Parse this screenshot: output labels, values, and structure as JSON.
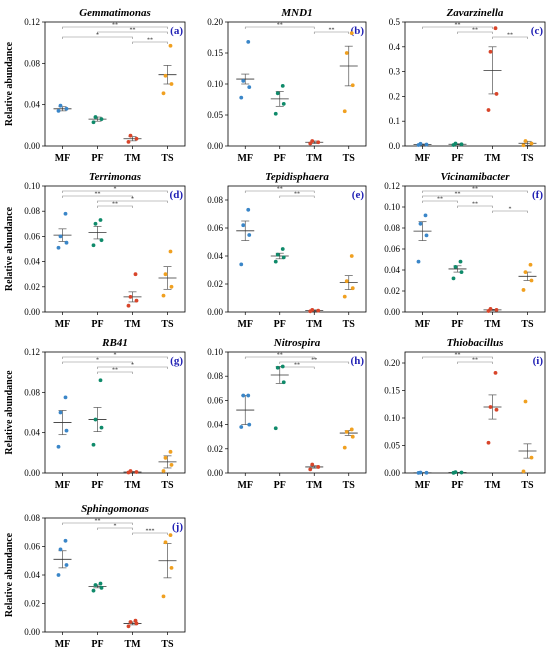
{
  "categories": [
    "MF",
    "PF",
    "TM",
    "TS"
  ],
  "colors": {
    "MF": "#3a86c8",
    "PF": "#0f8a6a",
    "TM": "#d8452a",
    "TS": "#f0a020"
  },
  "y_label": "Relative abundance",
  "chart_data": [
    {
      "type": "scatter",
      "title": "Gemmatimonas",
      "letter": "(a)",
      "ylim": [
        0,
        0.12
      ],
      "yticks": [
        "0.00",
        "0.04",
        "0.08",
        "0.12"
      ],
      "ytick_values": [
        0,
        0.04,
        0.08,
        0.12
      ],
      "series": [
        {
          "category": "MF",
          "points": [
            0.034,
            0.036,
            0.039
          ],
          "mean": 0.036,
          "err": 0.002
        },
        {
          "category": "PF",
          "points": [
            0.023,
            0.026,
            0.028
          ],
          "mean": 0.026,
          "err": 0.002
        },
        {
          "category": "TM",
          "points": [
            0.004,
            0.007,
            0.01
          ],
          "mean": 0.007,
          "err": 0.002
        },
        {
          "category": "TS",
          "points": [
            0.051,
            0.06,
            0.068,
            0.097
          ],
          "mean": 0.069,
          "err": 0.009
        }
      ],
      "significance": [
        {
          "from": "MF",
          "to": "TS",
          "label": "**"
        },
        {
          "from": "PF",
          "to": "TS",
          "label": "**"
        },
        {
          "from": "MF",
          "to": "TM",
          "label": "*"
        },
        {
          "from": "TM",
          "to": "TS",
          "label": "**"
        }
      ]
    },
    {
      "type": "scatter",
      "title": "MND1",
      "letter": "(b)",
      "ylim": [
        0,
        0.2
      ],
      "yticks": [
        "0.00",
        "0.05",
        "0.10",
        "0.15",
        "0.20"
      ],
      "ytick_values": [
        0,
        0.05,
        0.1,
        0.15,
        0.2
      ],
      "series": [
        {
          "category": "MF",
          "points": [
            0.078,
            0.095,
            0.105,
            0.168
          ],
          "mean": 0.108,
          "err": 0.008
        },
        {
          "category": "PF",
          "points": [
            0.052,
            0.068,
            0.085,
            0.097
          ],
          "mean": 0.076,
          "err": 0.012
        },
        {
          "category": "TM",
          "points": [
            0.004,
            0.006,
            0.008
          ],
          "mean": 0.006,
          "err": 0.002
        },
        {
          "category": "TS",
          "points": [
            0.056,
            0.098,
            0.15,
            0.182
          ],
          "mean": 0.129,
          "err": 0.032
        }
      ],
      "significance": [
        {
          "from": "MF",
          "to": "TM",
          "label": "**"
        },
        {
          "from": "TM",
          "to": "TS",
          "label": "**"
        }
      ]
    },
    {
      "type": "scatter",
      "title": "Zavarzinella",
      "letter": "(c)",
      "ylim": [
        0,
        0.5
      ],
      "yticks": [
        "0.0",
        "0.1",
        "0.2",
        "0.3",
        "0.4",
        "0.5"
      ],
      "ytick_values": [
        0,
        0.1,
        0.2,
        0.3,
        0.4,
        0.5
      ],
      "series": [
        {
          "category": "MF",
          "points": [
            0.004,
            0.006,
            0.009
          ],
          "mean": 0.006,
          "err": 0.002
        },
        {
          "category": "PF",
          "points": [
            0.004,
            0.007,
            0.01
          ],
          "mean": 0.007,
          "err": 0.002
        },
        {
          "category": "TM",
          "points": [
            0.145,
            0.21,
            0.38,
            0.475
          ],
          "mean": 0.305,
          "err": 0.095
        },
        {
          "category": "TS",
          "points": [
            0.003,
            0.01,
            0.02
          ],
          "mean": 0.011,
          "err": 0.008
        }
      ],
      "significance": [
        {
          "from": "MF",
          "to": "TM",
          "label": "**"
        },
        {
          "from": "PF",
          "to": "TM",
          "label": "**"
        },
        {
          "from": "TM",
          "to": "TS",
          "label": "**"
        }
      ]
    },
    {
      "type": "scatter",
      "title": "Terrimonas",
      "letter": "(d)",
      "ylim": [
        0,
        0.1
      ],
      "yticks": [
        "0.00",
        "0.02",
        "0.04",
        "0.06",
        "0.08",
        "0.10"
      ],
      "ytick_values": [
        0,
        0.02,
        0.04,
        0.06,
        0.08,
        0.1
      ],
      "series": [
        {
          "category": "MF",
          "points": [
            0.051,
            0.055,
            0.06,
            0.078
          ],
          "mean": 0.061,
          "err": 0.005
        },
        {
          "category": "PF",
          "points": [
            0.053,
            0.057,
            0.07,
            0.073
          ],
          "mean": 0.063,
          "err": 0.005
        },
        {
          "category": "TM",
          "points": [
            0.005,
            0.009,
            0.012,
            0.03
          ],
          "mean": 0.012,
          "err": 0.004
        },
        {
          "category": "TS",
          "points": [
            0.013,
            0.02,
            0.03,
            0.048
          ],
          "mean": 0.027,
          "err": 0.009
        }
      ],
      "significance": [
        {
          "from": "MF",
          "to": "TS",
          "label": "*"
        },
        {
          "from": "MF",
          "to": "TM",
          "label": "**"
        },
        {
          "from": "PF",
          "to": "TS",
          "label": "*"
        },
        {
          "from": "PF",
          "to": "TM",
          "label": "**"
        }
      ]
    },
    {
      "type": "scatter",
      "title": "Tepidisphaera",
      "letter": "(e)",
      "ylim": [
        0,
        0.09
      ],
      "yticks": [
        "0.00",
        "0.02",
        "0.04",
        "0.06",
        "0.08"
      ],
      "ytick_values": [
        0,
        0.02,
        0.04,
        0.06,
        0.08
      ],
      "series": [
        {
          "category": "MF",
          "points": [
            0.034,
            0.055,
            0.062,
            0.073
          ],
          "mean": 0.058,
          "err": 0.007
        },
        {
          "category": "PF",
          "points": [
            0.036,
            0.039,
            0.041,
            0.045
          ],
          "mean": 0.04,
          "err": 0.002
        },
        {
          "category": "TM",
          "points": [
            0.0005,
            0.001,
            0.0015
          ],
          "mean": 0.001,
          "err": 0.0005
        },
        {
          "category": "TS",
          "points": [
            0.011,
            0.017,
            0.022,
            0.04
          ],
          "mean": 0.021,
          "err": 0.005
        }
      ],
      "significance": [
        {
          "from": "MF",
          "to": "TM",
          "label": "**"
        },
        {
          "from": "PF",
          "to": "TM",
          "label": "**"
        }
      ]
    },
    {
      "type": "scatter",
      "title": "Vicinamibacter",
      "letter": "(f)",
      "ylim": [
        0,
        0.12
      ],
      "yticks": [
        "0.00",
        "0.02",
        "0.04",
        "0.06",
        "0.08",
        "0.10",
        "0.12"
      ],
      "ytick_values": [
        0,
        0.02,
        0.04,
        0.06,
        0.08,
        0.1,
        0.12
      ],
      "series": [
        {
          "category": "MF",
          "points": [
            0.048,
            0.073,
            0.084,
            0.092
          ],
          "mean": 0.077,
          "err": 0.009
        },
        {
          "category": "PF",
          "points": [
            0.032,
            0.038,
            0.043,
            0.048
          ],
          "mean": 0.041,
          "err": 0.003
        },
        {
          "category": "TM",
          "points": [
            0.001,
            0.002,
            0.003
          ],
          "mean": 0.002,
          "err": 0.0005
        },
        {
          "category": "TS",
          "points": [
            0.021,
            0.03,
            0.038,
            0.045
          ],
          "mean": 0.034,
          "err": 0.004
        }
      ],
      "significance": [
        {
          "from": "MF",
          "to": "TS",
          "label": "**"
        },
        {
          "from": "MF",
          "to": "TM",
          "label": "**"
        },
        {
          "from": "MF",
          "to": "PF",
          "label": "**"
        },
        {
          "from": "PF",
          "to": "TM",
          "label": "**"
        },
        {
          "from": "TM",
          "to": "TS",
          "label": "*"
        }
      ]
    },
    {
      "type": "scatter",
      "title": "RB41",
      "letter": "(g)",
      "ylim": [
        0,
        0.12
      ],
      "yticks": [
        "0.00",
        "0.04",
        "0.08",
        "0.12"
      ],
      "ytick_values": [
        0,
        0.04,
        0.08,
        0.12
      ],
      "series": [
        {
          "category": "MF",
          "points": [
            0.026,
            0.042,
            0.06,
            0.075
          ],
          "mean": 0.05,
          "err": 0.012
        },
        {
          "category": "PF",
          "points": [
            0.028,
            0.045,
            0.053,
            0.092
          ],
          "mean": 0.053,
          "err": 0.012
        },
        {
          "category": "TM",
          "points": [
            0.0005,
            0.001,
            0.002
          ],
          "mean": 0.001,
          "err": 0.0005
        },
        {
          "category": "TS",
          "points": [
            0.002,
            0.008,
            0.015,
            0.021
          ],
          "mean": 0.011,
          "err": 0.006
        }
      ],
      "significance": [
        {
          "from": "MF",
          "to": "TS",
          "label": "*"
        },
        {
          "from": "MF",
          "to": "TM",
          "label": "*"
        },
        {
          "from": "PF",
          "to": "TS",
          "label": "*"
        },
        {
          "from": "PF",
          "to": "TM",
          "label": "**"
        }
      ]
    },
    {
      "type": "scatter",
      "title": "Nitrospira",
      "letter": "(h)",
      "ylim": [
        0,
        0.1
      ],
      "yticks": [
        "0.00",
        "0.02",
        "0.04",
        "0.06",
        "0.08",
        "0.10"
      ],
      "ytick_values": [
        0,
        0.02,
        0.04,
        0.06,
        0.08,
        0.1
      ],
      "series": [
        {
          "category": "MF",
          "points": [
            0.038,
            0.04,
            0.064,
            0.064
          ],
          "mean": 0.052,
          "err": 0.012
        },
        {
          "category": "PF",
          "points": [
            0.037,
            0.075,
            0.087,
            0.088
          ],
          "mean": 0.081,
          "err": 0.007
        },
        {
          "category": "TM",
          "points": [
            0.003,
            0.005,
            0.007
          ],
          "mean": 0.005,
          "err": 0.001
        },
        {
          "category": "TS",
          "points": [
            0.021,
            0.03,
            0.034,
            0.036
          ],
          "mean": 0.033,
          "err": 0.002
        }
      ],
      "significance": [
        {
          "from": "MF",
          "to": "TM",
          "label": "**"
        },
        {
          "from": "PF",
          "to": "TS",
          "label": "**"
        },
        {
          "from": "PF",
          "to": "TM",
          "label": "**"
        }
      ]
    },
    {
      "type": "scatter",
      "title": "Thiobacillus",
      "letter": "(i)",
      "ylim": [
        0,
        0.22
      ],
      "yticks": [
        "0.00",
        "0.05",
        "0.10",
        "0.15",
        "0.20"
      ],
      "ytick_values": [
        0,
        0.05,
        0.1,
        0.15,
        0.2
      ],
      "series": [
        {
          "category": "MF",
          "points": [
            0.0002,
            0.0005,
            0.0008
          ],
          "mean": 0.0005,
          "err": 0.0002
        },
        {
          "category": "PF",
          "points": [
            0.0003,
            0.0008,
            0.0015
          ],
          "mean": 0.0008,
          "err": 0.0004
        },
        {
          "category": "TM",
          "points": [
            0.055,
            0.115,
            0.12,
            0.182
          ],
          "mean": 0.12,
          "err": 0.022
        },
        {
          "category": "TS",
          "points": [
            0.003,
            0.028,
            0.13
          ],
          "mean": 0.04,
          "err": 0.013
        }
      ],
      "significance": [
        {
          "from": "MF",
          "to": "TM",
          "label": "**"
        },
        {
          "from": "PF",
          "to": "TM",
          "label": "**"
        }
      ]
    },
    {
      "type": "scatter",
      "title": "Sphingomonas",
      "letter": "(j)",
      "ylim": [
        0,
        0.08
      ],
      "yticks": [
        "0.00",
        "0.02",
        "0.04",
        "0.06",
        "0.08"
      ],
      "ytick_values": [
        0,
        0.02,
        0.04,
        0.06,
        0.08
      ],
      "series": [
        {
          "category": "MF",
          "points": [
            0.04,
            0.047,
            0.058,
            0.064
          ],
          "mean": 0.051,
          "err": 0.006
        },
        {
          "category": "PF",
          "points": [
            0.029,
            0.031,
            0.033,
            0.034
          ],
          "mean": 0.032,
          "err": 0.001
        },
        {
          "category": "TM",
          "points": [
            0.004,
            0.006,
            0.007,
            0.008
          ],
          "mean": 0.006,
          "err": 0.001
        },
        {
          "category": "TS",
          "points": [
            0.025,
            0.045,
            0.063,
            0.068
          ],
          "mean": 0.05,
          "err": 0.012
        }
      ],
      "significance": [
        {
          "from": "MF",
          "to": "TM",
          "label": "**"
        },
        {
          "from": "PF",
          "to": "TM",
          "label": "*"
        },
        {
          "from": "TM",
          "to": "TS",
          "label": "***"
        }
      ]
    }
  ]
}
